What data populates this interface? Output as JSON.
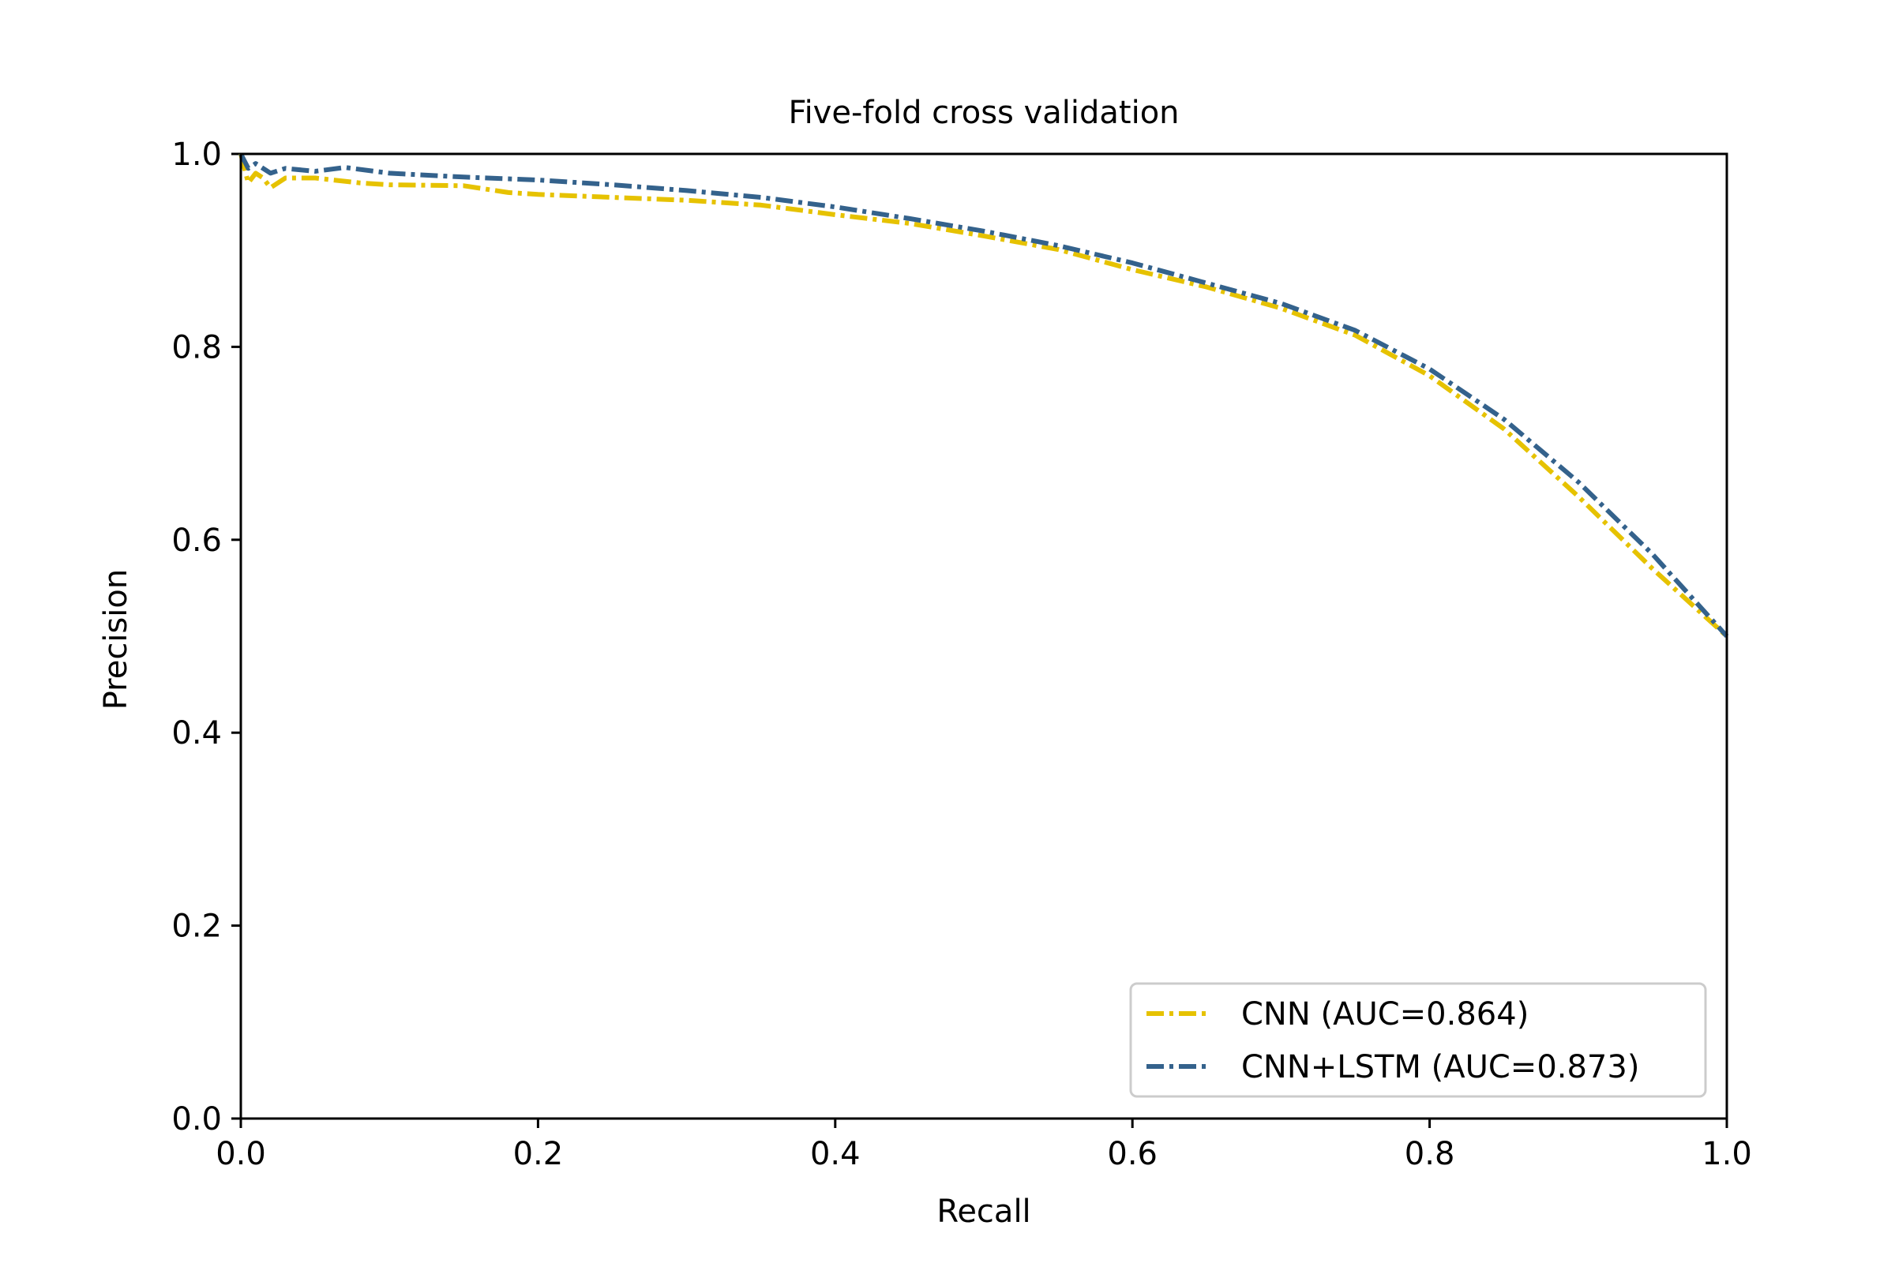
{
  "chart_data": {
    "type": "line",
    "title": "Five-fold cross validation",
    "xlabel": "Recall",
    "ylabel": "Precision",
    "xlim": [
      0.0,
      1.0
    ],
    "ylim": [
      0.0,
      1.0
    ],
    "xticks": [
      "0.0",
      "0.2",
      "0.4",
      "0.6",
      "0.8",
      "1.0"
    ],
    "yticks": [
      "0.0",
      "0.2",
      "0.4",
      "0.6",
      "0.8",
      "1.0"
    ],
    "grid": false,
    "legend_position": "lower-right",
    "series": [
      {
        "name": "CNN (AUC=0.864)",
        "color": "#e6c200",
        "line_style": "dash-dot",
        "points": [
          [
            0.0,
            1.0
          ],
          [
            0.005,
            0.97
          ],
          [
            0.01,
            0.98
          ],
          [
            0.015,
            0.975
          ],
          [
            0.02,
            0.965
          ],
          [
            0.03,
            0.975
          ],
          [
            0.05,
            0.975
          ],
          [
            0.08,
            0.97
          ],
          [
            0.1,
            0.968
          ],
          [
            0.15,
            0.967
          ],
          [
            0.18,
            0.96
          ],
          [
            0.2,
            0.958
          ],
          [
            0.25,
            0.955
          ],
          [
            0.3,
            0.952
          ],
          [
            0.35,
            0.947
          ],
          [
            0.4,
            0.937
          ],
          [
            0.45,
            0.928
          ],
          [
            0.5,
            0.915
          ],
          [
            0.55,
            0.901
          ],
          [
            0.6,
            0.88
          ],
          [
            0.65,
            0.862
          ],
          [
            0.7,
            0.84
          ],
          [
            0.75,
            0.812
          ],
          [
            0.8,
            0.77
          ],
          [
            0.85,
            0.715
          ],
          [
            0.9,
            0.645
          ],
          [
            0.95,
            0.57
          ],
          [
            1.0,
            0.5
          ]
        ]
      },
      {
        "name": "CNN+LSTM (AUC=0.873)",
        "color": "#34628c",
        "line_style": "dash-dot",
        "points": [
          [
            0.0,
            1.0
          ],
          [
            0.005,
            0.985
          ],
          [
            0.01,
            0.99
          ],
          [
            0.015,
            0.985
          ],
          [
            0.02,
            0.98
          ],
          [
            0.03,
            0.985
          ],
          [
            0.05,
            0.982
          ],
          [
            0.07,
            0.986
          ],
          [
            0.1,
            0.98
          ],
          [
            0.15,
            0.976
          ],
          [
            0.2,
            0.973
          ],
          [
            0.25,
            0.968
          ],
          [
            0.3,
            0.962
          ],
          [
            0.35,
            0.955
          ],
          [
            0.4,
            0.945
          ],
          [
            0.45,
            0.933
          ],
          [
            0.5,
            0.92
          ],
          [
            0.55,
            0.905
          ],
          [
            0.6,
            0.887
          ],
          [
            0.65,
            0.866
          ],
          [
            0.7,
            0.845
          ],
          [
            0.75,
            0.817
          ],
          [
            0.8,
            0.777
          ],
          [
            0.85,
            0.725
          ],
          [
            0.9,
            0.66
          ],
          [
            0.95,
            0.585
          ],
          [
            1.0,
            0.5
          ]
        ]
      }
    ]
  }
}
